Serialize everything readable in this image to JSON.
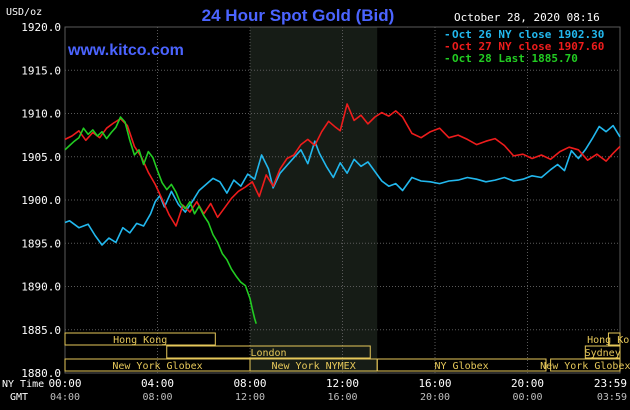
{
  "chart_data": {
    "type": "line",
    "title": "24 Hour Spot Gold (Bid)",
    "watermark": "www.kitco.com",
    "ylabel": "USD/oz",
    "timestamp": "October 28, 2020 08:16",
    "ylim": [
      1880,
      1920
    ],
    "yticks": [
      "1920.0",
      "1915.0",
      "1910.0",
      "1905.0",
      "1900.0",
      "1895.0",
      "1890.0",
      "1885.0",
      "1880.0"
    ],
    "x_range_hours": [
      0,
      24
    ],
    "xticks_ny": [
      "00:00",
      "04:00",
      "08:00",
      "12:00",
      "16:00",
      "20:00",
      "23:59"
    ],
    "xticks_gmt": [
      "04:00",
      "08:00",
      "12:00",
      "16:00",
      "20:00",
      "00:00",
      "03:59"
    ],
    "x_row_labels": {
      "ny": "NY Time",
      "gmt": "GMT"
    },
    "highlight_hours": [
      8.0,
      13.5
    ],
    "colors": {
      "background": "#000000",
      "grid": "#5a5a5a",
      "highlight": "#161c16",
      "axis_text": "#ffffff",
      "title": "#4b64ff",
      "session": "#e6c85a"
    },
    "legend_position": "top-right",
    "series": [
      {
        "name": "Oct 26 NY close 1902.30",
        "color": "#22b8ee",
        "x": [
          0,
          0.2,
          0.6,
          1.0,
          1.3,
          1.6,
          1.9,
          2.2,
          2.5,
          2.8,
          3.1,
          3.4,
          3.7,
          3.9,
          4.1,
          4.3,
          4.6,
          4.9,
          5.2,
          5.5,
          5.8,
          6.1,
          6.4,
          6.7,
          7.0,
          7.3,
          7.6,
          7.9,
          8.2,
          8.5,
          8.8,
          9.0,
          9.3,
          9.6,
          9.9,
          10.2,
          10.5,
          10.8,
          11.0,
          11.3,
          11.6,
          11.9,
          12.2,
          12.5,
          12.8,
          13.1,
          13.4,
          13.7,
          14.0,
          14.3,
          14.6,
          15.0,
          15.4,
          15.8,
          16.2,
          16.6,
          17.0,
          17.4,
          17.8,
          18.2,
          18.6,
          19.0,
          19.4,
          19.8,
          20.2,
          20.6,
          21.0,
          21.3,
          21.6,
          21.9,
          22.2,
          22.5,
          22.8,
          23.1,
          23.4,
          23.7,
          24.0
        ],
        "y": [
          1897.4,
          1897.6,
          1896.8,
          1897.2,
          1895.9,
          1894.8,
          1895.6,
          1895.1,
          1896.8,
          1896.2,
          1897.3,
          1897.0,
          1898.4,
          1899.8,
          1900.5,
          1899.2,
          1901.0,
          1899.5,
          1898.6,
          1899.8,
          1901.1,
          1901.8,
          1902.5,
          1902.1,
          1900.8,
          1902.3,
          1901.6,
          1903.0,
          1902.4,
          1905.2,
          1903.6,
          1901.4,
          1903.1,
          1904.0,
          1904.9,
          1905.8,
          1904.2,
          1906.8,
          1905.4,
          1903.9,
          1902.6,
          1904.3,
          1903.1,
          1904.7,
          1903.9,
          1904.4,
          1903.3,
          1902.2,
          1901.6,
          1901.9,
          1901.1,
          1902.6,
          1902.2,
          1902.1,
          1901.9,
          1902.2,
          1902.3,
          1902.6,
          1902.4,
          1902.1,
          1902.3,
          1902.6,
          1902.2,
          1902.4,
          1902.8,
          1902.6,
          1903.5,
          1904.1,
          1903.4,
          1905.7,
          1904.8,
          1905.8,
          1907.1,
          1908.5,
          1907.9,
          1908.6,
          1907.3
        ]
      },
      {
        "name": "Oct 27 NY close 1907.60",
        "color": "#ee1c1c",
        "x": [
          0,
          0.3,
          0.6,
          0.9,
          1.2,
          1.5,
          1.8,
          2.1,
          2.4,
          2.7,
          3.0,
          3.3,
          3.6,
          3.9,
          4.2,
          4.5,
          4.8,
          5.1,
          5.4,
          5.7,
          6.0,
          6.3,
          6.6,
          6.9,
          7.2,
          7.5,
          7.8,
          8.1,
          8.4,
          8.7,
          9.0,
          9.3,
          9.6,
          9.9,
          10.2,
          10.5,
          10.8,
          11.1,
          11.4,
          11.7,
          11.9,
          12.2,
          12.5,
          12.8,
          13.1,
          13.4,
          13.7,
          14.0,
          14.3,
          14.6,
          15.0,
          15.4,
          15.8,
          16.2,
          16.6,
          17.0,
          17.4,
          17.8,
          18.2,
          18.6,
          19.0,
          19.4,
          19.8,
          20.2,
          20.6,
          21.0,
          21.4,
          21.8,
          22.2,
          22.6,
          23.0,
          23.4,
          23.7,
          24.0
        ],
        "y": [
          1907.0,
          1907.4,
          1908.0,
          1906.9,
          1907.8,
          1907.2,
          1908.3,
          1908.9,
          1909.4,
          1908.6,
          1906.2,
          1905.0,
          1903.2,
          1901.8,
          1900.1,
          1898.3,
          1897.0,
          1899.4,
          1898.6,
          1899.8,
          1898.4,
          1899.6,
          1898.0,
          1899.1,
          1900.2,
          1901.0,
          1901.5,
          1902.1,
          1900.4,
          1902.9,
          1901.6,
          1903.6,
          1904.8,
          1905.2,
          1906.4,
          1907.0,
          1906.3,
          1907.9,
          1909.1,
          1908.4,
          1908.0,
          1911.1,
          1909.2,
          1909.8,
          1908.8,
          1909.6,
          1910.1,
          1909.7,
          1910.3,
          1909.6,
          1907.7,
          1907.2,
          1907.9,
          1908.3,
          1907.2,
          1907.5,
          1907.0,
          1906.4,
          1906.8,
          1907.1,
          1906.3,
          1905.1,
          1905.3,
          1904.8,
          1905.2,
          1904.7,
          1905.6,
          1906.1,
          1905.8,
          1904.6,
          1905.3,
          1904.5,
          1905.4,
          1906.2
        ]
      },
      {
        "name": "Oct 28 Last 1885.70",
        "color": "#22cc22",
        "x": [
          0,
          0.2,
          0.4,
          0.6,
          0.8,
          1.0,
          1.2,
          1.4,
          1.6,
          1.8,
          2.0,
          2.2,
          2.4,
          2.6,
          2.8,
          3.0,
          3.2,
          3.4,
          3.6,
          3.8,
          4.0,
          4.2,
          4.4,
          4.6,
          4.8,
          5.0,
          5.2,
          5.4,
          5.6,
          5.8,
          6.0,
          6.2,
          6.4,
          6.6,
          6.8,
          7.0,
          7.2,
          7.4,
          7.6,
          7.8,
          8.0,
          8.1,
          8.2,
          8.27
        ],
        "y": [
          1905.8,
          1906.3,
          1906.8,
          1907.2,
          1908.3,
          1907.6,
          1908.1,
          1907.4,
          1907.9,
          1907.1,
          1907.8,
          1908.4,
          1909.6,
          1909.0,
          1906.9,
          1905.2,
          1905.8,
          1904.1,
          1905.6,
          1904.9,
          1903.4,
          1902.0,
          1901.2,
          1901.8,
          1900.9,
          1899.6,
          1899.0,
          1899.8,
          1898.4,
          1899.3,
          1898.2,
          1897.4,
          1896.0,
          1895.1,
          1893.8,
          1893.1,
          1892.0,
          1891.2,
          1890.5,
          1890.1,
          1888.6,
          1887.4,
          1886.3,
          1885.7
        ]
      }
    ],
    "sessions": [
      {
        "label": "Hong Kong",
        "start": 0,
        "end": 6.5
      },
      {
        "label": "Hong Kong",
        "start": 23.5,
        "end": 24
      },
      {
        "label": "Sydney",
        "start": 22.5,
        "end": 24
      },
      {
        "label": "London",
        "start": 4.4,
        "end": 13.2
      },
      {
        "label": "New York Globex",
        "start": 0,
        "end": 8.0
      },
      {
        "label": "New York NYMEX",
        "start": 8.0,
        "end": 13.5
      },
      {
        "label": "NY Globex",
        "start": 13.5,
        "end": 20.8
      },
      {
        "label": "New York Globex",
        "start": 21.0,
        "end": 24
      }
    ]
  }
}
